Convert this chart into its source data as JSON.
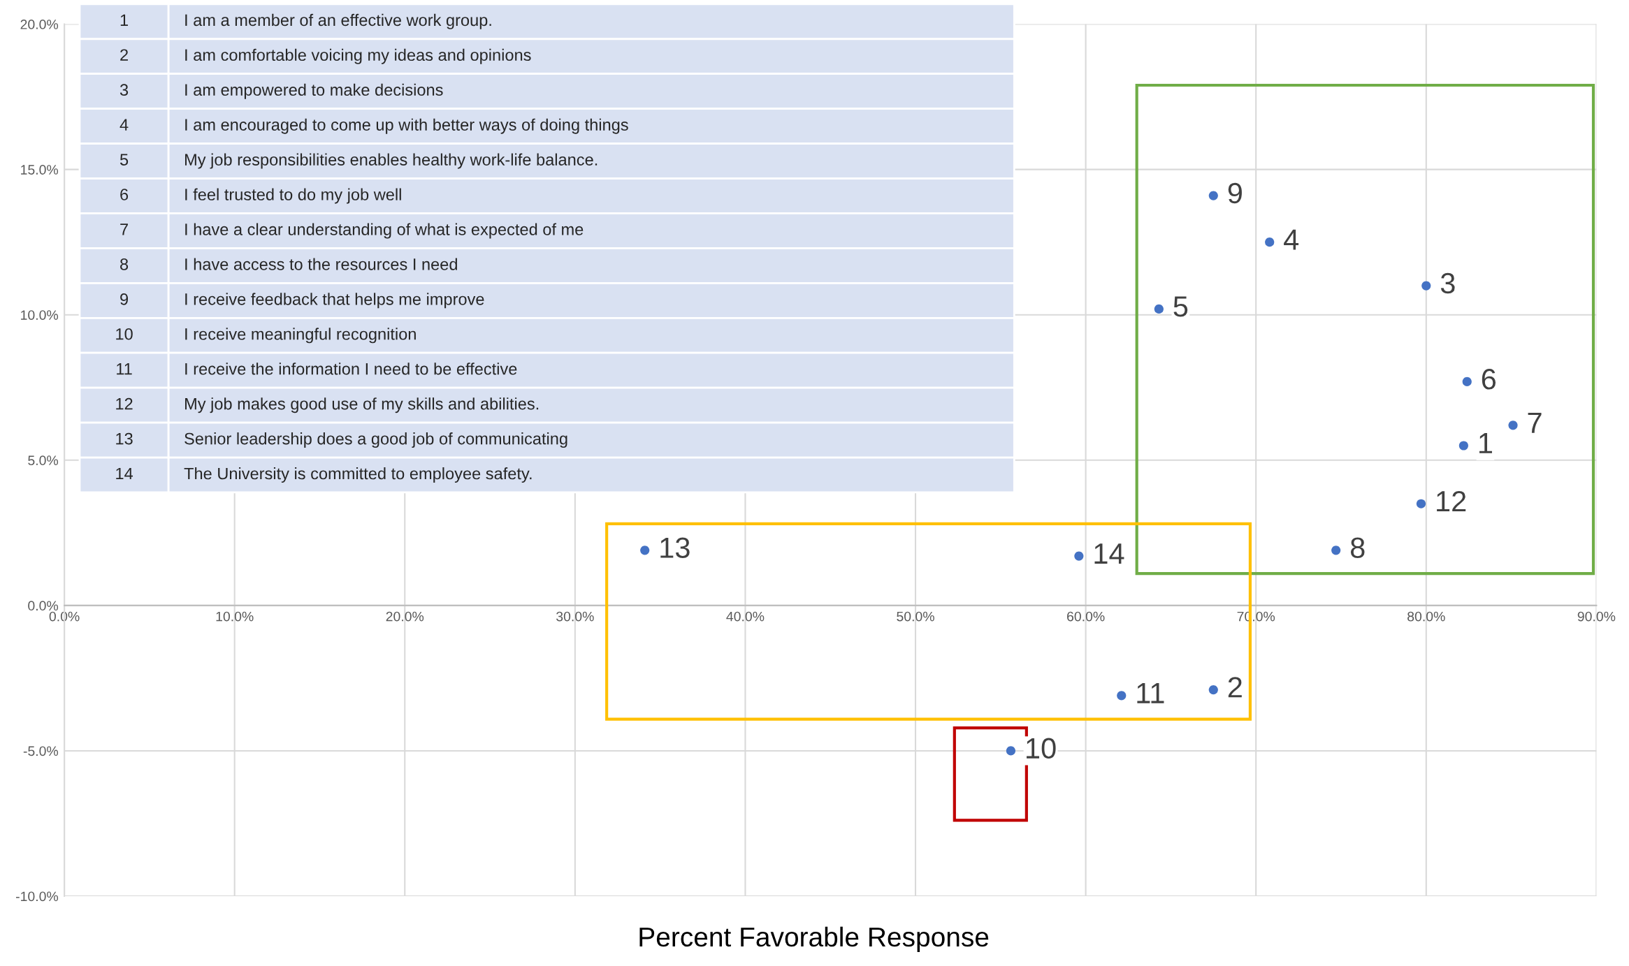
{
  "chart_data": {
    "type": "scatter",
    "xlabel": "Percent Favorable Response",
    "x": [
      82.2,
      67.5,
      80.0,
      70.8,
      64.3,
      82.4,
      85.1,
      74.7,
      67.5,
      55.6,
      62.1,
      79.7,
      34.1,
      59.6
    ],
    "series": [
      {
        "color": "#4472c4",
        "values": [
          5.5,
          -2.9,
          11.0,
          12.5,
          10.2,
          7.7,
          6.2,
          1.9,
          14.1,
          -5.0,
          -3.1,
          3.5,
          1.9,
          1.7
        ]
      }
    ],
    "marker": "circle",
    "grid": true,
    "xlim": [
      0,
      90
    ],
    "ylim": [
      -10,
      20
    ],
    "xticks": [
      {
        "value": 0,
        "label": "0.0%"
      },
      {
        "value": 10,
        "label": "10.0%"
      },
      {
        "value": 20,
        "label": "20.0%"
      },
      {
        "value": 30,
        "label": "30.0%"
      },
      {
        "value": 40,
        "label": "40.0%"
      },
      {
        "value": 50,
        "label": "50.0%"
      },
      {
        "value": 60,
        "label": "60.0%"
      },
      {
        "value": 70,
        "label": "70.0%"
      },
      {
        "value": 80,
        "label": "80.0%"
      },
      {
        "value": 90,
        "label": "90.0%"
      }
    ],
    "yticks": [
      {
        "value": -10,
        "label": "-10.0%"
      },
      {
        "value": -5,
        "label": "-5.0%"
      },
      {
        "value": 0,
        "label": "0.0%"
      },
      {
        "value": 5,
        "label": "5.0%"
      },
      {
        "value": 10,
        "label": "10.0%"
      },
      {
        "value": 15,
        "label": "15.0%"
      },
      {
        "value": 20,
        "label": "20.0%"
      }
    ],
    "annotations": [
      {
        "text": "1",
        "x": 82.2,
        "y": 5.5
      },
      {
        "text": "2",
        "x": 67.5,
        "y": -2.9
      },
      {
        "text": "3",
        "x": 80.0,
        "y": 11.0
      },
      {
        "text": "4",
        "x": 70.8,
        "y": 12.5
      },
      {
        "text": "5",
        "x": 64.3,
        "y": 10.2
      },
      {
        "text": "6",
        "x": 82.4,
        "y": 7.7
      },
      {
        "text": "7",
        "x": 85.1,
        "y": 6.2
      },
      {
        "text": "8",
        "x": 74.7,
        "y": 1.9
      },
      {
        "text": "9",
        "x": 67.5,
        "y": 14.1
      },
      {
        "text": "10",
        "x": 55.6,
        "y": -5.0
      },
      {
        "text": "11",
        "x": 62.1,
        "y": -3.1
      },
      {
        "text": "12",
        "x": 79.7,
        "y": 3.5
      },
      {
        "text": "13",
        "x": 34.1,
        "y": 1.9
      },
      {
        "text": "14",
        "x": 59.6,
        "y": 1.7
      },
      "1 I am a member of an effective work group.",
      "2 I am comfortable voicing my ideas and opinions",
      "3 I am empowered to make decisions",
      "4 I am encouraged to come up with better ways of doing things",
      "5 My job responsibilities enables healthy work-life balance.",
      "6 I feel trusted to do my job well",
      "7 I have a clear understanding of what is expected of me",
      "8 I have access to the resources I need",
      "9 I receive feedback that helps me improve",
      "10 I receive meaningful recognition",
      "11 I receive the information I need to be effective",
      "12 My job makes good use of my skills and abilities.",
      "13 Senior leadership does a good job of communicating",
      "14 The University is committed to employee safety."
    ]
  }
}
